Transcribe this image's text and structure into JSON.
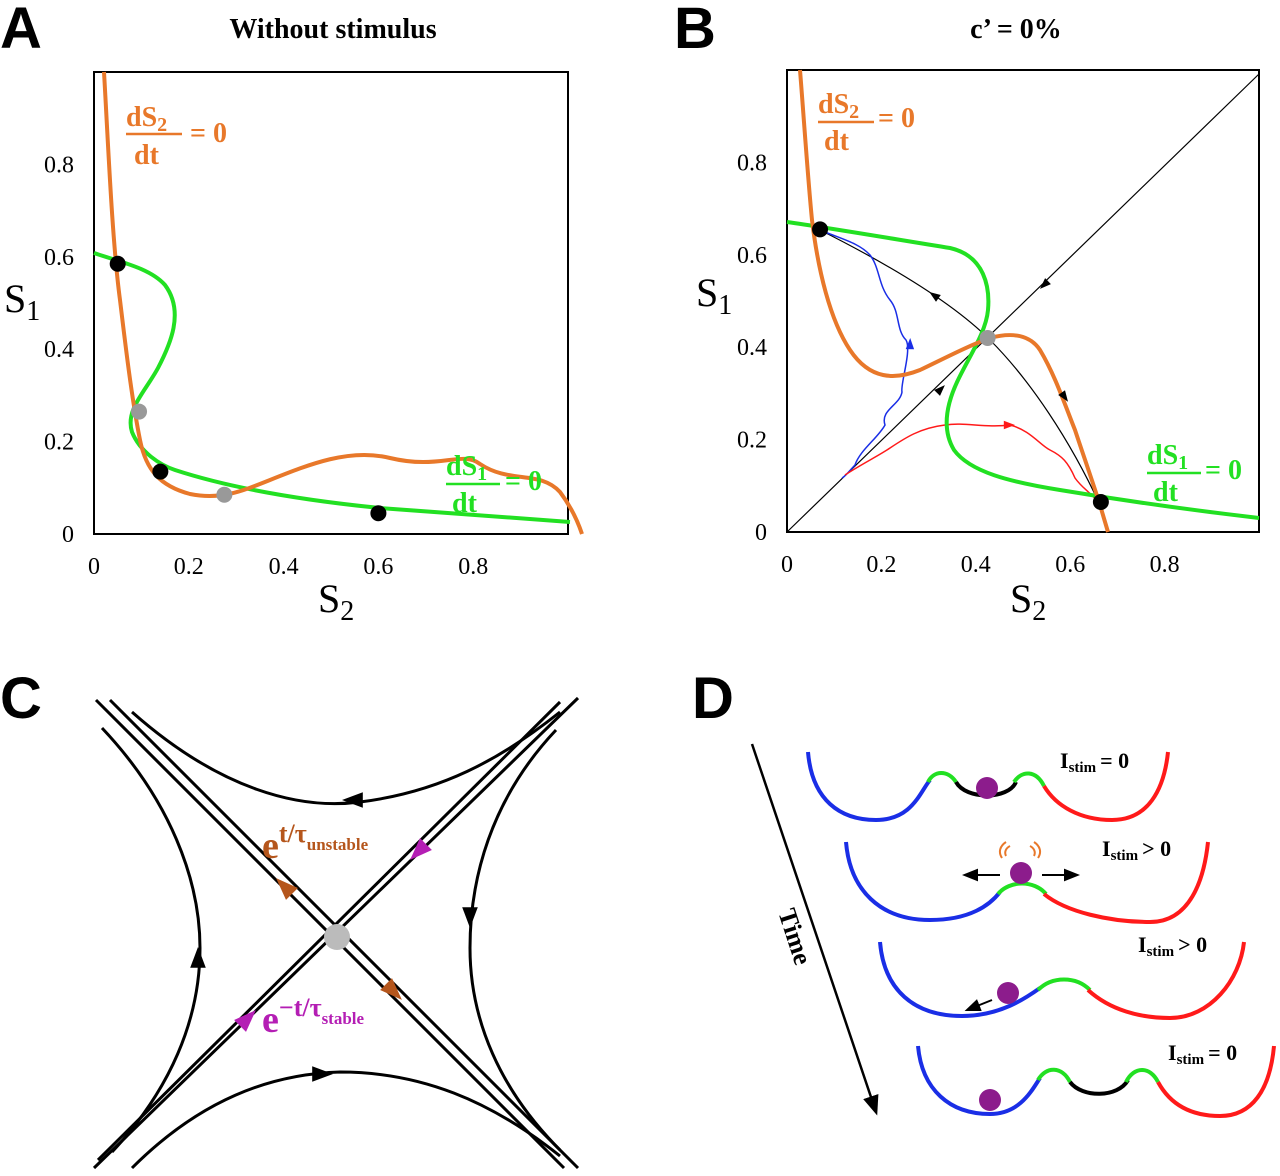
{
  "colors": {
    "orange": "#e8782a",
    "green": "#22e022",
    "gray": "#999999",
    "black": "#000000",
    "blue": "#1a2ee6",
    "red": "#ff1a1a",
    "brown": "#b5561c",
    "magenta": "#b41eb4",
    "purple": "#8c1c8c"
  },
  "panel_a": {
    "letter": "A",
    "title": "Without stimulus",
    "ticks_x": [
      "0",
      "0.2",
      "0.4",
      "0.6",
      "0.8"
    ],
    "ticks_y": [
      "0",
      "0.2",
      "0.4",
      "0.6",
      "0.8"
    ],
    "xlabel": {
      "main": "S",
      "sub": "2"
    },
    "ylabel": {
      "main": "S",
      "sub": "1"
    },
    "nullcline_s2": {
      "num": "dS",
      "sub": "2",
      "den": "dt",
      "rhs": "= 0"
    },
    "nullcline_s1": {
      "num": "dS",
      "sub": "1",
      "den": "dt",
      "rhs": "= 0"
    },
    "stable_points": [
      [
        0.05,
        0.585
      ],
      [
        0.14,
        0.135
      ],
      [
        0.6,
        0.045
      ]
    ],
    "saddle_points": [
      [
        0.095,
        0.265
      ],
      [
        0.275,
        0.085
      ]
    ]
  },
  "panel_b": {
    "letter": "B",
    "title": "c’ = 0%",
    "ticks_x": [
      "0",
      "0.2",
      "0.4",
      "0.6",
      "0.8"
    ],
    "ticks_y": [
      "0",
      "0.2",
      "0.4",
      "0.6",
      "0.8"
    ],
    "xlabel": {
      "main": "S",
      "sub": "2"
    },
    "ylabel": {
      "main": "S",
      "sub": "1"
    },
    "nullcline_s2": {
      "num": "dS",
      "sub": "2",
      "den": "dt",
      "rhs": "= 0"
    },
    "nullcline_s1": {
      "num": "dS",
      "sub": "1",
      "den": "dt",
      "rhs": "= 0"
    },
    "stable_points": [
      [
        0.07,
        0.655
      ],
      [
        0.665,
        0.065
      ]
    ],
    "saddle_points": [
      [
        0.425,
        0.42
      ]
    ]
  },
  "panel_c": {
    "letter": "C",
    "unstable_label": {
      "base": "e",
      "exp": "t/τ",
      "sub": "unstable"
    },
    "stable_label": {
      "base": "e",
      "exp": "−t/τ",
      "sub": "stable"
    }
  },
  "panel_d": {
    "letter": "D",
    "time_label": "Time",
    "rows": [
      {
        "label_main": "I",
        "label_sub": "stim",
        "label_rel": "= 0"
      },
      {
        "label_main": "I",
        "label_sub": "stim",
        "label_rel": "> 0"
      },
      {
        "label_main": "I",
        "label_sub": "stim",
        "label_rel": "> 0"
      },
      {
        "label_main": "I",
        "label_sub": "stim",
        "label_rel": "= 0"
      }
    ]
  }
}
